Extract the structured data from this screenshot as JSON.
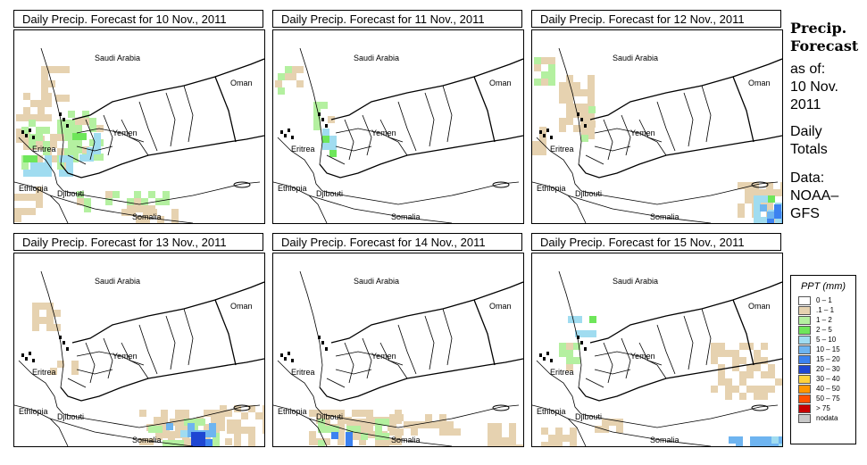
{
  "panels": [
    {
      "title": "Daily Precip. Forecast for  10 Nov., 2011"
    },
    {
      "title": "Daily Precip. Forecast for  11 Nov., 2011"
    },
    {
      "title": "Daily Precip. Forecast for  12 Nov., 2011"
    },
    {
      "title": "Daily Precip. Forecast for  13 Nov., 2011"
    },
    {
      "title": "Daily Precip. Forecast for  14 Nov., 2011"
    },
    {
      "title": "Daily Precip. Forecast for  15 Nov., 2011"
    }
  ],
  "countries": {
    "saudi": "Saudi Arabia",
    "oman": "Oman",
    "yemen": "Yemen",
    "eritrea": "Eritrea",
    "ethiopia": "Ethiopia",
    "djibouti": "Djibouti",
    "somalia": "Somalia"
  },
  "side": {
    "title1": "Precip.",
    "title2": "Forecast",
    "asof": "as of:",
    "date1": "10 Nov.",
    "date2": "2011",
    "daily1": "Daily",
    "daily2": "Totals",
    "data1": "Data:",
    "data2": "NOAA–",
    "data3": "GFS"
  },
  "legend": {
    "title": "PPT (mm)",
    "items": [
      {
        "label": "0 – 1",
        "color": "#ffffff"
      },
      {
        "label": ".1 – 1",
        "color": "#e6d2b0"
      },
      {
        "label": "1 – 2",
        "color": "#b4f0a0"
      },
      {
        "label": "2 – 5",
        "color": "#6ee65a"
      },
      {
        "label": "5 – 10",
        "color": "#a0dcf0"
      },
      {
        "label": "10 – 15",
        "color": "#6eb4f0"
      },
      {
        "label": "15 – 20",
        "color": "#3c82f0"
      },
      {
        "label": "20 – 30",
        "color": "#1e46d2"
      },
      {
        "label": "30 – 40",
        "color": "#ffd23c"
      },
      {
        "label": "40 – 50",
        "color": "#ff9600"
      },
      {
        "label": "50 – 75",
        "color": "#ff5000"
      },
      {
        "label": "> 75",
        "color": "#c80000"
      },
      {
        "label": "nodata",
        "color": "#c8c8c8"
      }
    ]
  }
}
